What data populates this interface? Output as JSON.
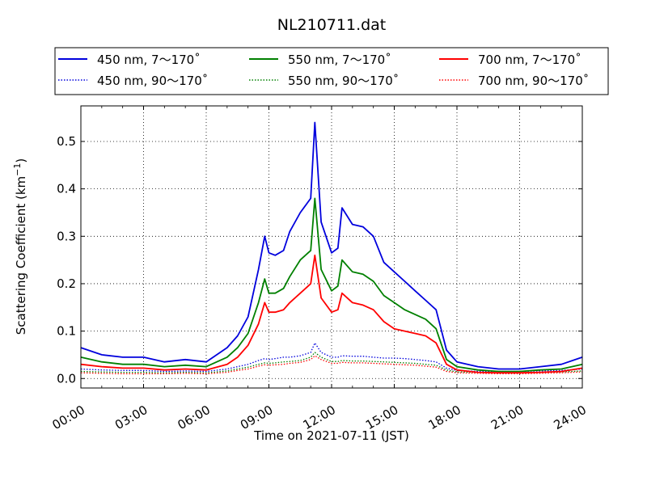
{
  "chart_data": {
    "type": "line",
    "title": "NL210711.dat",
    "xlabel": "Time on 2021-07-11 (JST)",
    "ylabel": "Scattering Coefficient (km⁻¹)",
    "ylabel_main": "Scattering Coefficient (km",
    "ylabel_sup": "−1",
    "ylabel_end": ")",
    "xlim": [
      0,
      24
    ],
    "ylim": [
      -0.02,
      0.575
    ],
    "x_ticks": [
      0,
      3,
      6,
      9,
      12,
      15,
      18,
      21,
      24
    ],
    "x_tick_labels": [
      "00:00",
      "03:00",
      "06:00",
      "09:00",
      "12:00",
      "15:00",
      "18:00",
      "21:00",
      "24:00"
    ],
    "y_ticks": [
      0.0,
      0.1,
      0.2,
      0.3,
      0.4,
      0.5
    ],
    "y_tick_labels": [
      "0.0",
      "0.1",
      "0.2",
      "0.3",
      "0.4",
      "0.5"
    ],
    "grid": true,
    "legend_position": "top, above plot",
    "x": [
      0,
      1,
      2,
      3,
      4,
      5,
      6,
      7,
      7.5,
      8,
      8.5,
      8.8,
      9,
      9.3,
      9.7,
      10,
      10.5,
      11,
      11.2,
      11.5,
      12,
      12.3,
      12.5,
      13,
      13.5,
      14,
      14.5,
      15,
      15.5,
      16,
      16.5,
      17,
      17.5,
      18,
      19,
      20,
      21,
      22,
      23,
      24
    ],
    "series": [
      {
        "name": "450 nm, 7～170˚",
        "color": "#0000dd",
        "style": "solid",
        "values": [
          0.065,
          0.05,
          0.045,
          0.045,
          0.035,
          0.04,
          0.035,
          0.065,
          0.09,
          0.13,
          0.23,
          0.3,
          0.265,
          0.26,
          0.27,
          0.31,
          0.35,
          0.38,
          0.54,
          0.33,
          0.265,
          0.275,
          0.36,
          0.325,
          0.32,
          0.3,
          0.245,
          0.225,
          0.205,
          0.185,
          0.165,
          0.145,
          0.06,
          0.035,
          0.025,
          0.02,
          0.02,
          0.025,
          0.03,
          0.045
        ]
      },
      {
        "name": "450 nm, 90～170˚",
        "color": "#0000dd",
        "style": "dotted",
        "values": [
          0.02,
          0.018,
          0.017,
          0.017,
          0.015,
          0.016,
          0.015,
          0.02,
          0.025,
          0.03,
          0.038,
          0.042,
          0.04,
          0.042,
          0.045,
          0.045,
          0.048,
          0.055,
          0.075,
          0.055,
          0.045,
          0.045,
          0.048,
          0.047,
          0.047,
          0.045,
          0.043,
          0.043,
          0.042,
          0.04,
          0.038,
          0.035,
          0.022,
          0.017,
          0.015,
          0.015,
          0.015,
          0.016,
          0.017,
          0.02
        ]
      },
      {
        "name": "550 nm, 7～170˚",
        "color": "#008000",
        "style": "solid",
        "values": [
          0.045,
          0.035,
          0.03,
          0.03,
          0.025,
          0.028,
          0.025,
          0.045,
          0.065,
          0.095,
          0.16,
          0.21,
          0.18,
          0.18,
          0.19,
          0.215,
          0.25,
          0.27,
          0.38,
          0.23,
          0.185,
          0.195,
          0.25,
          0.225,
          0.22,
          0.205,
          0.175,
          0.16,
          0.145,
          0.135,
          0.125,
          0.105,
          0.04,
          0.025,
          0.018,
          0.015,
          0.015,
          0.018,
          0.02,
          0.03
        ]
      },
      {
        "name": "550 nm, 90～170˚",
        "color": "#008000",
        "style": "dotted",
        "values": [
          0.015,
          0.014,
          0.013,
          0.013,
          0.012,
          0.013,
          0.012,
          0.016,
          0.02,
          0.024,
          0.03,
          0.033,
          0.032,
          0.033,
          0.035,
          0.036,
          0.038,
          0.045,
          0.055,
          0.045,
          0.036,
          0.036,
          0.038,
          0.037,
          0.037,
          0.036,
          0.035,
          0.034,
          0.033,
          0.032,
          0.03,
          0.028,
          0.018,
          0.014,
          0.013,
          0.012,
          0.012,
          0.013,
          0.014,
          0.016
        ]
      },
      {
        "name": "700 nm, 7～170˚",
        "color": "#ff0000",
        "style": "solid",
        "values": [
          0.03,
          0.025,
          0.022,
          0.022,
          0.018,
          0.02,
          0.018,
          0.03,
          0.045,
          0.07,
          0.115,
          0.16,
          0.14,
          0.14,
          0.145,
          0.16,
          0.18,
          0.2,
          0.26,
          0.17,
          0.14,
          0.145,
          0.18,
          0.16,
          0.155,
          0.145,
          0.12,
          0.105,
          0.1,
          0.095,
          0.09,
          0.075,
          0.03,
          0.018,
          0.013,
          0.012,
          0.012,
          0.013,
          0.015,
          0.022
        ]
      },
      {
        "name": "700 nm, 90～170˚",
        "color": "#ff0000",
        "style": "dotted",
        "values": [
          0.012,
          0.011,
          0.01,
          0.01,
          0.01,
          0.011,
          0.01,
          0.013,
          0.017,
          0.02,
          0.026,
          0.029,
          0.028,
          0.029,
          0.03,
          0.032,
          0.034,
          0.04,
          0.048,
          0.04,
          0.032,
          0.032,
          0.034,
          0.033,
          0.033,
          0.032,
          0.031,
          0.03,
          0.029,
          0.028,
          0.026,
          0.024,
          0.015,
          0.012,
          0.011,
          0.01,
          0.01,
          0.011,
          0.012,
          0.014
        ]
      }
    ]
  }
}
